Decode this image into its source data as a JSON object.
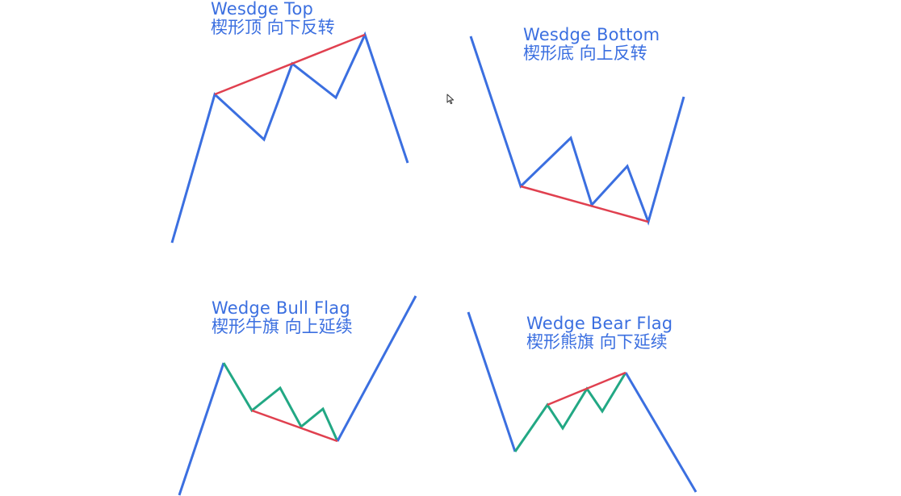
{
  "panels": [
    {
      "key": "wedge_top",
      "title_en": "Wesdge Top",
      "title_zh": "楔形顶 向下反转"
    },
    {
      "key": "wedge_bottom",
      "title_en": "Wesdge Bottom",
      "title_zh": "楔形底 向上反转"
    },
    {
      "key": "wedge_bull_flag",
      "title_en": "Wedge Bull Flag",
      "title_zh": "楔形牛旗 向上延续"
    },
    {
      "key": "wedge_bear_flag",
      "title_en": "Wedge Bear Flag",
      "title_zh": "楔形熊旗 向下延续"
    }
  ],
  "colors": {
    "trend_line": "#3b6fe0",
    "wedge_boundary": "#e0404f",
    "flag_line": "#22a884",
    "title_text": "#3b6fe0"
  },
  "icons": {
    "cursor": "mouse-pointer-icon"
  }
}
